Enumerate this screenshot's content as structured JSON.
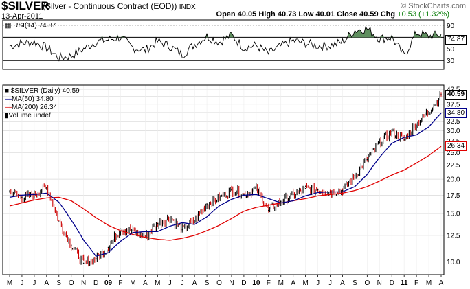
{
  "header": {
    "symbol": "$SILVER",
    "description": "(Silver - Continuous Contract (EOD))",
    "exchange": "INDX",
    "date": "13-Apr-2011",
    "open_label": "Open",
    "open": "40.05",
    "high_label": "High",
    "high": "40.73",
    "low_label": "Low",
    "low": "40.01",
    "close_label": "Close",
    "close": "40.59",
    "chg_label": "Chg",
    "chg": "+0.53 (+1.32%)",
    "credit": "© StockCharts.com"
  },
  "rsi_panel": {
    "legend": "RSI(14) 74.87",
    "last_value": "74.87",
    "ticks": [
      90,
      70,
      50,
      30
    ],
    "ylim": [
      15,
      100
    ]
  },
  "price_panel": {
    "legend_price": "$SILVER (Daily) 40.59",
    "legend_ma50": "MA(50) 34.80",
    "legend_ma200": "MA(200) 26.34",
    "legend_volume": "Volume undef",
    "last_price": "40.59",
    "last_ma50": "34.80",
    "last_ma200": "26.34",
    "ticks": [
      10.0,
      12.5,
      15.0,
      17.5,
      20.0,
      22.5,
      25.0,
      27.5,
      30.0,
      32.5,
      35.0,
      37.5,
      40.0,
      42.5
    ],
    "ylim": [
      9.0,
      44.0
    ],
    "scale": "log"
  },
  "colors": {
    "price": "#000000",
    "down": "#cc0000",
    "ma50": "#00008b",
    "ma200": "#e00000",
    "rsi_fill": "#5f8f5f"
  },
  "chart_data": [
    {
      "type": "line",
      "title": "RSI(14)",
      "x": [
        "2008-05",
        "2008-06",
        "2008-07",
        "2008-08",
        "2008-09",
        "2008-10",
        "2008-11",
        "2008-12",
        "2009-01",
        "2009-02",
        "2009-03",
        "2009-04",
        "2009-05",
        "2009-06",
        "2009-07",
        "2009-08",
        "2009-09",
        "2009-10",
        "2009-11",
        "2009-12",
        "2010-01",
        "2010-02",
        "2010-03",
        "2010-04",
        "2010-05",
        "2010-06",
        "2010-07",
        "2010-08",
        "2010-09",
        "2010-10",
        "2010-11",
        "2010-12",
        "2011-01",
        "2011-02",
        "2011-03",
        "2011-04"
      ],
      "series": [
        {
          "name": "RSI(14)",
          "values": [
            55,
            60,
            62,
            52,
            35,
            38,
            50,
            62,
            66,
            70,
            52,
            48,
            63,
            55,
            40,
            58,
            72,
            62,
            74,
            52,
            56,
            42,
            55,
            64,
            60,
            55,
            56,
            62,
            82,
            85,
            68,
            70,
            38,
            78,
            72,
            74.87
          ]
        }
      ],
      "ylim": [
        15,
        100
      ]
    },
    {
      "type": "line",
      "title": "$SILVER (Daily)",
      "x": [
        "2008-05",
        "2008-06",
        "2008-07",
        "2008-08",
        "2008-09",
        "2008-10",
        "2008-11",
        "2008-12",
        "2009-01",
        "2009-02",
        "2009-03",
        "2009-04",
        "2009-05",
        "2009-06",
        "2009-07",
        "2009-08",
        "2009-09",
        "2009-10",
        "2009-11",
        "2009-12",
        "2010-01",
        "2010-02",
        "2010-03",
        "2010-04",
        "2010-05",
        "2010-06",
        "2010-07",
        "2010-08",
        "2010-09",
        "2010-10",
        "2010-11",
        "2010-12",
        "2011-01",
        "2011-02",
        "2011-03",
        "2011-04"
      ],
      "series": [
        {
          "name": "$SILVER",
          "values": [
            18.0,
            17.2,
            17.6,
            18.6,
            14.0,
            11.5,
            9.9,
            10.3,
            11.3,
            13.2,
            13.0,
            12.3,
            13.8,
            14.5,
            13.1,
            14.1,
            16.2,
            17.1,
            18.3,
            17.6,
            18.4,
            15.4,
            16.6,
            17.6,
            18.5,
            18.3,
            18.0,
            18.2,
            20.6,
            23.6,
            27.2,
            29.8,
            27.8,
            31.8,
            35.2,
            40.59
          ]
        },
        {
          "name": "MA(50)",
          "values": [
            17.2,
            17.5,
            17.6,
            17.8,
            16.5,
            14.2,
            12.0,
            10.5,
            10.8,
            11.9,
            12.8,
            12.9,
            12.9,
            13.5,
            13.9,
            13.7,
            14.6,
            16.0,
            16.9,
            17.5,
            17.6,
            17.0,
            16.4,
            16.7,
            17.4,
            17.9,
            18.0,
            18.0,
            18.8,
            20.8,
            24.0,
            27.0,
            28.4,
            29.0,
            31.0,
            34.8
          ]
        },
        {
          "name": "MA(200)",
          "values": [
            16.0,
            16.4,
            16.8,
            17.1,
            17.2,
            16.7,
            15.6,
            14.5,
            13.6,
            13.0,
            12.6,
            12.3,
            12.1,
            12.0,
            12.2,
            12.5,
            13.0,
            13.6,
            14.4,
            15.3,
            15.8,
            16.1,
            16.4,
            16.7,
            17.0,
            17.4,
            17.6,
            17.8,
            18.2,
            18.8,
            19.7,
            20.7,
            21.6,
            22.9,
            24.4,
            26.34
          ]
        }
      ],
      "ylim": [
        9.0,
        44.0
      ]
    }
  ],
  "axis": {
    "x_labels": [
      "M",
      "J",
      "J",
      "A",
      "S",
      "O",
      "N",
      "D",
      "09",
      "F",
      "M",
      "A",
      "M",
      "J",
      "J",
      "A",
      "S",
      "O",
      "N",
      "D",
      "10",
      "F",
      "M",
      "A",
      "M",
      "J",
      "J",
      "A",
      "S",
      "O",
      "N",
      "D",
      "11",
      "F",
      "M",
      "A"
    ],
    "bold": [
      "09",
      "10",
      "11"
    ]
  }
}
